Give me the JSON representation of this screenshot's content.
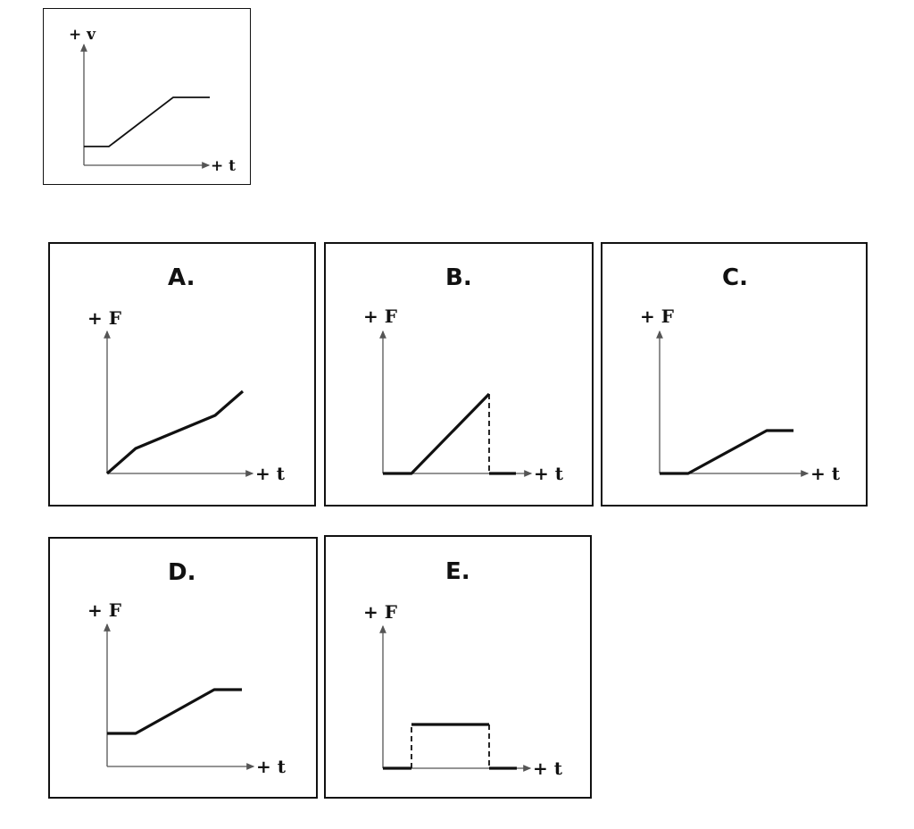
{
  "reference": {
    "y_label": "+ v",
    "x_label": "+ t"
  },
  "options": [
    {
      "letter": "A.",
      "y_label": "+ F",
      "x_label": "+ t"
    },
    {
      "letter": "B.",
      "y_label": "+ F",
      "x_label": "+ t"
    },
    {
      "letter": "C.",
      "y_label": "+ F",
      "x_label": "+ t"
    },
    {
      "letter": "D.",
      "y_label": "+ F",
      "x_label": "+ t"
    },
    {
      "letter": "E.",
      "y_label": "+ F",
      "x_label": "+ t"
    }
  ]
}
